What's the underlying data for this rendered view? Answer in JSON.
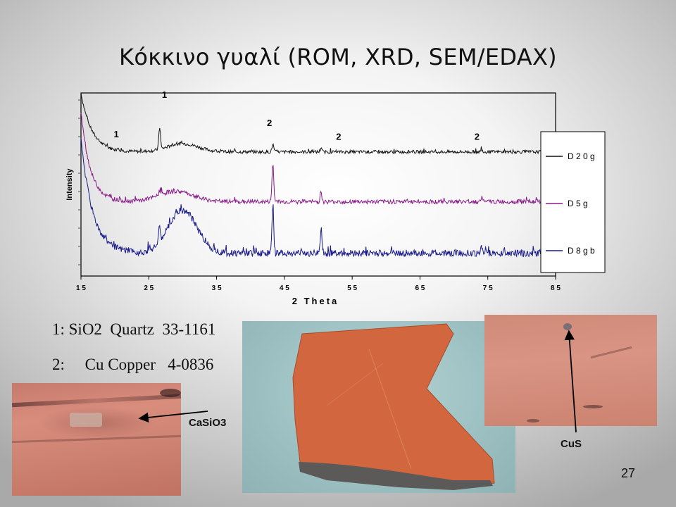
{
  "slide": {
    "title": "Κόκκινο γυαλί (ROM, XRD, SEM/EDAX)",
    "page_number": "27"
  },
  "references": [
    {
      "text": "1: SiO2  Quartz  33-1161"
    },
    {
      "text": "2:     Cu Copper   4-0836"
    }
  ],
  "photos": {
    "left_label": "CaSiO3",
    "right_label": "CuS"
  },
  "chart_data": {
    "type": "line",
    "xlabel": "2 Theta",
    "ylabel": "Intensity",
    "xlim": [
      15,
      85
    ],
    "xticks": [
      15,
      25,
      35,
      45,
      55,
      65,
      75,
      85
    ],
    "xtick_labels": [
      "1 5",
      "2 5",
      "3 5",
      "4 5",
      "5 5",
      "6 5",
      "7 5",
      "8 5"
    ],
    "legend_position": "right",
    "series": [
      {
        "name": "D 2 0 g",
        "color": "#111111",
        "baseline": 0.07,
        "start": 1.0,
        "decay": 1.6,
        "noise": 0.025,
        "humps": [
          [
            30,
            0.13,
            3.2
          ]
        ],
        "peaks": [
          [
            26.6,
            0.35
          ],
          [
            43.3,
            0.12
          ],
          [
            50.4,
            0.05
          ],
          [
            74.1,
            0.04
          ],
          [
            20.5,
            0.04
          ]
        ]
      },
      {
        "name": "D 5 g",
        "color": "#8a1a8a",
        "baseline": 0.07,
        "start": 1.0,
        "decay": 1.4,
        "noise": 0.022,
        "humps": [
          [
            29,
            0.11,
            3.5
          ]
        ],
        "peaks": [
          [
            43.3,
            0.4
          ],
          [
            50.4,
            0.09
          ],
          [
            74.1,
            0.05
          ],
          [
            26.6,
            0.05
          ]
        ]
      },
      {
        "name": "D 8 g b",
        "color": "#1a1a8c",
        "baseline": 0.06,
        "start": 1.0,
        "decay": 1.7,
        "noise": 0.028,
        "humps": [
          [
            30,
            0.35,
            3.0
          ]
        ],
        "peaks": [
          [
            43.3,
            0.4
          ],
          [
            50.4,
            0.18
          ],
          [
            26.6,
            0.12
          ],
          [
            74.1,
            0.05
          ]
        ]
      }
    ],
    "annotations": [
      {
        "text": "1",
        "x": 27.3,
        "series": 0,
        "y": 0.92
      },
      {
        "text": "1",
        "x": 20.2,
        "series": 0,
        "y": 0.3
      },
      {
        "text": "2",
        "x": 42.8,
        "series": 0,
        "y": 0.48
      },
      {
        "text": "2",
        "x": 53.0,
        "series": 0,
        "y": 0.26
      },
      {
        "text": "2",
        "x": 73.4,
        "series": 0,
        "y": 0.26
      }
    ]
  }
}
